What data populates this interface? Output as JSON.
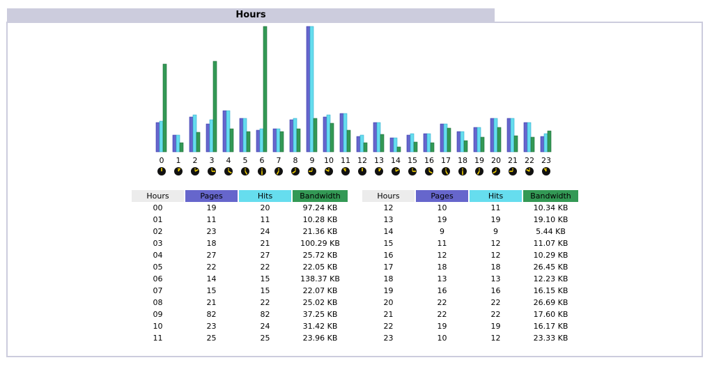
{
  "section_title": "Hours",
  "colors": {
    "pages": "#6666cc",
    "hits": "#66ddee",
    "bandwidth": "#339955",
    "header_bg": "#ccccdd"
  },
  "table": {
    "headers": {
      "hours": "Hours",
      "pages": "Pages",
      "hits": "Hits",
      "bandwidth": "Bandwidth"
    },
    "left": [
      [
        "00",
        "19",
        "20",
        "97.24 KB"
      ],
      [
        "01",
        "11",
        "11",
        "10.28 KB"
      ],
      [
        "02",
        "23",
        "24",
        "21.36 KB"
      ],
      [
        "03",
        "18",
        "21",
        "100.29 KB"
      ],
      [
        "04",
        "27",
        "27",
        "25.72 KB"
      ],
      [
        "05",
        "22",
        "22",
        "22.05 KB"
      ],
      [
        "06",
        "14",
        "15",
        "138.37 KB"
      ],
      [
        "07",
        "15",
        "15",
        "22.07 KB"
      ],
      [
        "08",
        "21",
        "22",
        "25.02 KB"
      ],
      [
        "09",
        "82",
        "82",
        "37.25 KB"
      ],
      [
        "10",
        "23",
        "24",
        "31.42 KB"
      ],
      [
        "11",
        "25",
        "25",
        "23.96 KB"
      ]
    ],
    "right": [
      [
        "12",
        "10",
        "11",
        "10.34 KB"
      ],
      [
        "13",
        "19",
        "19",
        "19.10 KB"
      ],
      [
        "14",
        "9",
        "9",
        "5.44 KB"
      ],
      [
        "15",
        "11",
        "12",
        "11.07 KB"
      ],
      [
        "16",
        "12",
        "12",
        "10.29 KB"
      ],
      [
        "17",
        "18",
        "18",
        "26.45 KB"
      ],
      [
        "18",
        "13",
        "13",
        "12.23 KB"
      ],
      [
        "19",
        "16",
        "16",
        "16.15 KB"
      ],
      [
        "20",
        "22",
        "22",
        "26.69 KB"
      ],
      [
        "21",
        "22",
        "22",
        "17.60 KB"
      ],
      [
        "22",
        "19",
        "19",
        "16.17 KB"
      ],
      [
        "23",
        "10",
        "12",
        "23.33 KB"
      ]
    ]
  },
  "chart_data": {
    "type": "bar",
    "categories": [
      "0",
      "1",
      "2",
      "3",
      "4",
      "5",
      "6",
      "7",
      "8",
      "9",
      "10",
      "11",
      "12",
      "13",
      "14",
      "15",
      "16",
      "17",
      "18",
      "19",
      "20",
      "21",
      "22",
      "23"
    ],
    "series": [
      {
        "name": "Pages",
        "values": [
          19,
          11,
          23,
          18,
          27,
          22,
          14,
          15,
          21,
          82,
          23,
          25,
          10,
          19,
          9,
          11,
          12,
          18,
          13,
          16,
          22,
          22,
          19,
          10
        ]
      },
      {
        "name": "Hits",
        "values": [
          20,
          11,
          24,
          21,
          27,
          22,
          15,
          15,
          22,
          82,
          24,
          25,
          11,
          19,
          9,
          12,
          12,
          18,
          13,
          16,
          22,
          22,
          19,
          12
        ]
      },
      {
        "name": "Bandwidth",
        "unit": "KB",
        "values": [
          97.24,
          10.28,
          21.36,
          100.29,
          25.72,
          22.05,
          138.37,
          22.07,
          25.02,
          37.25,
          31.42,
          23.96,
          10.34,
          19.1,
          5.44,
          11.07,
          10.29,
          26.45,
          12.23,
          16.15,
          26.69,
          17.6,
          16.17,
          23.33
        ]
      }
    ],
    "clock_hours": [
      0,
      1,
      2,
      3,
      4,
      5,
      6,
      7,
      8,
      9,
      10,
      11,
      12,
      13,
      14,
      15,
      16,
      17,
      18,
      19,
      20,
      21,
      22,
      23
    ]
  }
}
